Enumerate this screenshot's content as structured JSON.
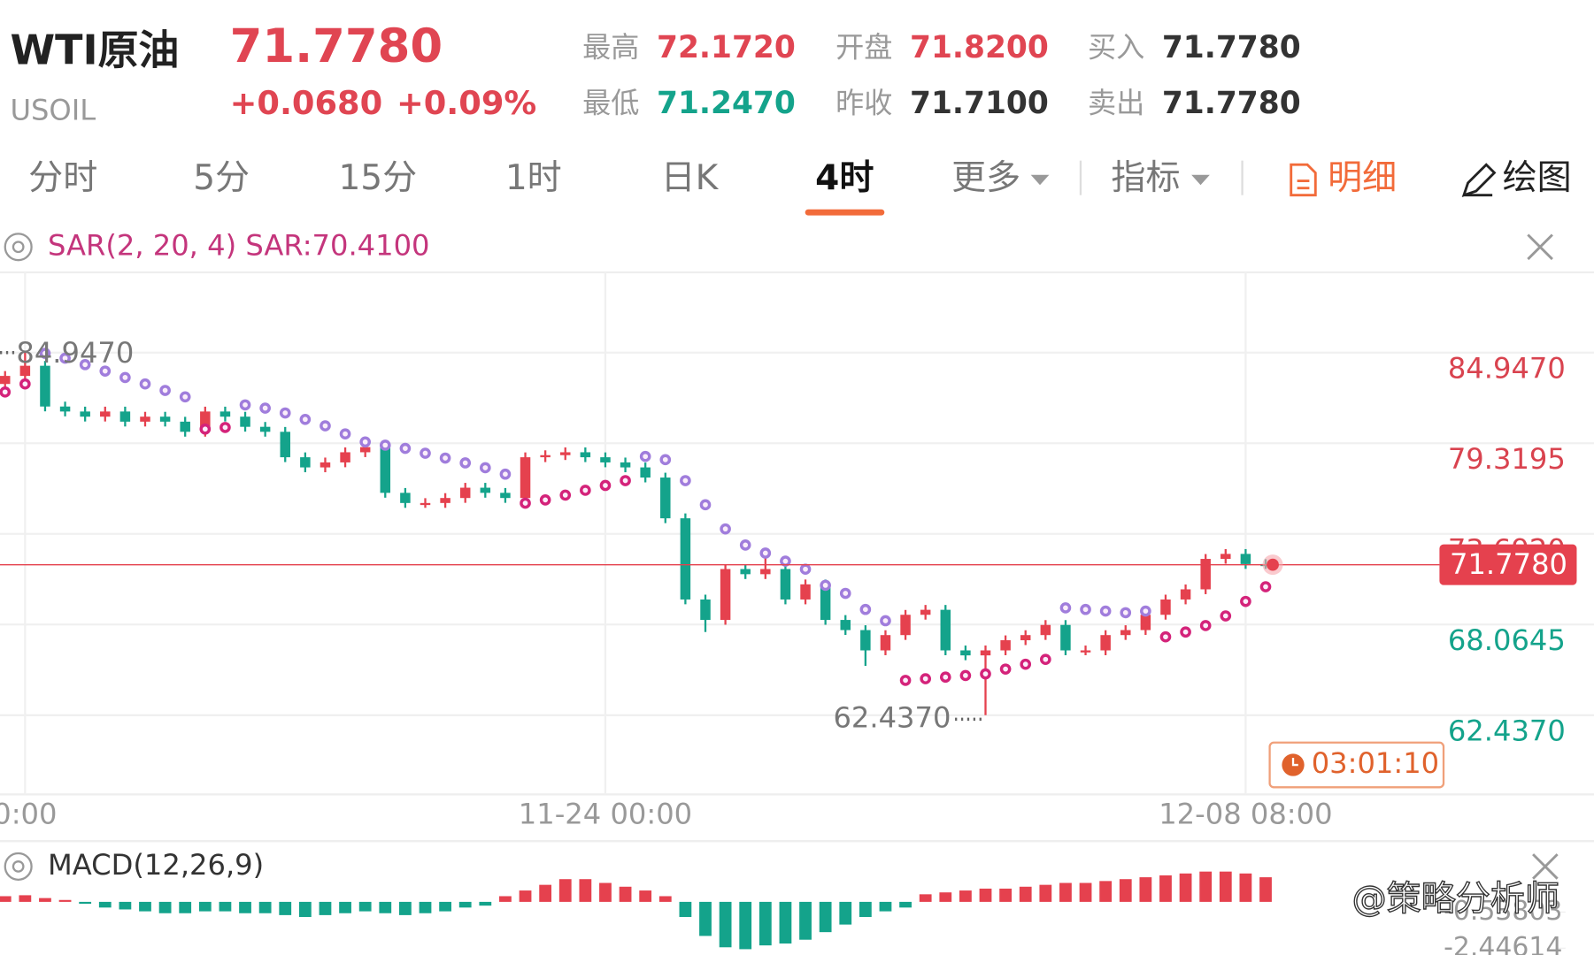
{
  "header": {
    "name": "WTI原油",
    "symbol": "USOIL",
    "price": "71.7780",
    "change": "+0.0680",
    "change_pct": "+0.09%"
  },
  "quotes": [
    {
      "label": "最高",
      "value": "72.1720"
    },
    {
      "label": "最低",
      "value": "71.2470"
    },
    {
      "label": "开盘",
      "value": "71.8200"
    },
    {
      "label": "昨收",
      "value": "71.7100"
    },
    {
      "label": "买入",
      "value": "71.7780"
    },
    {
      "label": "卖出",
      "value": "71.7780"
    }
  ],
  "tabs": [
    "分时",
    "5分",
    "15分",
    "1时",
    "日K",
    "4时",
    "更多",
    "指标",
    "明细",
    "绘图"
  ],
  "indicator": "SAR(2, 20, 4) SAR:70.4100",
  "timer": "03:01:10",
  "watermark": "@策略分析师",
  "chart_data": {
    "type": "candlestick",
    "ylim": [
      57.52,
      89.93
    ],
    "yticks": [
      {
        "value": 84.947,
        "label": "84.9470"
      },
      {
        "value": 79.3195,
        "label": "79.3195"
      },
      {
        "value": 73.692,
        "label": "73.6920"
      },
      {
        "value": 68.0645,
        "label": "68.0645"
      },
      {
        "value": 62.437,
        "label": "62.4370"
      }
    ],
    "grid": true,
    "high_label": "84.9470",
    "low_label": "62.4370",
    "up_color": "#e5414e",
    "down_color": "#14a38b",
    "sar_up_color": "#d4237a",
    "sar_down_color": "#a07ddc",
    "categories": [
      null,
      "0:00",
      null,
      null,
      null,
      null,
      null,
      null,
      null,
      null,
      null,
      null,
      null,
      null,
      null,
      null,
      null,
      null,
      null,
      null,
      null,
      null,
      null,
      null,
      null,
      null,
      null,
      null,
      null,
      null,
      "11-24 00:00",
      null,
      null,
      null,
      null,
      null,
      null,
      null,
      null,
      null,
      null,
      null,
      null,
      null,
      null,
      null,
      null,
      null,
      null,
      null,
      null,
      null,
      null,
      null,
      null,
      null,
      null,
      null,
      null,
      null,
      null,
      null,
      "12-08 08:00",
      null
    ],
    "candles": [
      [
        83.0,
        83.8,
        82.7,
        83.5
      ],
      [
        83.5,
        84.947,
        83.2,
        84.13
      ],
      [
        84.13,
        84.43,
        81.3,
        81.6
      ],
      [
        81.6,
        81.9,
        80.99,
        81.29
      ],
      [
        81.29,
        81.59,
        80.67,
        80.97
      ],
      [
        80.97,
        81.59,
        80.67,
        81.29
      ],
      [
        81.29,
        81.59,
        80.36,
        80.66
      ],
      [
        80.66,
        81.27,
        80.36,
        80.97
      ],
      [
        80.97,
        81.27,
        80.36,
        80.66
      ],
      [
        80.66,
        80.96,
        79.73,
        80.03
      ],
      [
        80.03,
        81.59,
        79.73,
        81.29
      ],
      [
        81.29,
        81.59,
        80.67,
        80.97
      ],
      [
        80.97,
        81.27,
        80.04,
        80.34
      ],
      [
        80.34,
        80.64,
        79.73,
        80.03
      ],
      [
        80.03,
        80.33,
        78.15,
        78.45
      ],
      [
        78.45,
        78.75,
        77.52,
        77.82
      ],
      [
        77.82,
        78.43,
        77.52,
        78.13
      ],
      [
        78.13,
        79.06,
        77.83,
        78.76
      ],
      [
        78.76,
        79.38,
        78.46,
        79.08
      ],
      [
        79.08,
        79.38,
        75.94,
        76.24
      ],
      [
        76.24,
        76.54,
        75.31,
        75.61
      ],
      [
        75.61,
        75.91,
        75.31,
        75.61
      ],
      [
        75.61,
        76.22,
        75.31,
        75.92
      ],
      [
        75.92,
        76.86,
        75.62,
        76.56
      ],
      [
        76.56,
        76.86,
        75.94,
        76.24
      ],
      [
        76.24,
        76.54,
        75.62,
        75.92
      ],
      [
        75.92,
        78.75,
        75.62,
        78.45
      ],
      [
        78.45,
        78.88,
        78.15,
        78.58
      ],
      [
        78.58,
        79.06,
        78.28,
        78.76
      ],
      [
        78.76,
        79.06,
        78.15,
        78.45
      ],
      [
        78.45,
        78.75,
        77.83,
        78.13
      ],
      [
        78.13,
        78.43,
        77.52,
        77.82
      ],
      [
        77.82,
        78.12,
        76.89,
        77.19
      ],
      [
        77.19,
        77.49,
        74.36,
        74.66
      ],
      [
        74.66,
        74.96,
        69.32,
        69.62
      ],
      [
        69.62,
        69.92,
        67.6,
        68.35
      ],
      [
        68.35,
        71.81,
        68.05,
        71.51
      ],
      [
        71.51,
        71.81,
        70.89,
        71.19
      ],
      [
        71.19,
        72.4,
        70.89,
        71.51
      ],
      [
        71.51,
        71.81,
        69.32,
        69.62
      ],
      [
        69.62,
        70.86,
        69.32,
        70.56
      ],
      [
        70.56,
        70.86,
        68.05,
        68.35
      ],
      [
        68.35,
        68.65,
        67.42,
        67.72
      ],
      [
        67.72,
        68.02,
        65.5,
        66.46
      ],
      [
        66.46,
        67.71,
        66.16,
        67.41
      ],
      [
        67.41,
        68.97,
        67.11,
        68.67
      ],
      [
        68.67,
        69.28,
        68.37,
        68.98
      ],
      [
        68.98,
        69.28,
        66.16,
        66.46
      ],
      [
        66.46,
        66.76,
        65.85,
        66.15
      ],
      [
        66.15,
        66.76,
        62.437,
        66.46
      ],
      [
        66.46,
        67.39,
        66.16,
        67.09
      ],
      [
        67.09,
        67.71,
        66.79,
        67.41
      ],
      [
        67.41,
        68.34,
        67.11,
        68.04
      ],
      [
        68.04,
        68.34,
        66.16,
        66.46
      ],
      [
        66.46,
        66.76,
        66.16,
        66.46
      ],
      [
        66.46,
        67.71,
        66.16,
        67.41
      ],
      [
        67.41,
        68.02,
        67.11,
        67.72
      ],
      [
        67.72,
        68.97,
        67.42,
        68.67
      ],
      [
        68.67,
        69.92,
        68.37,
        69.62
      ],
      [
        69.62,
        70.55,
        69.32,
        70.25
      ],
      [
        70.25,
        72.44,
        69.95,
        72.14
      ],
      [
        72.14,
        72.75,
        71.84,
        72.45
      ],
      [
        72.45,
        72.75,
        71.52,
        71.82
      ],
      [
        71.82,
        72.12,
        71.52,
        71.778
      ]
    ],
    "sar": [
      82.5,
      83.0,
      84.9,
      84.6,
      84.2,
      83.8,
      83.4,
      83.0,
      82.6,
      82.2,
      80.2,
      80.3,
      81.7,
      81.5,
      81.2,
      80.8,
      80.4,
      79.9,
      79.4,
      79.2,
      79.0,
      78.7,
      78.4,
      78.1,
      77.8,
      77.4,
      75.6,
      75.8,
      76.1,
      76.4,
      76.7,
      77.0,
      78.5,
      78.3,
      77.0,
      75.5,
      74.0,
      73.0,
      72.5,
      72.0,
      71.5,
      70.5,
      70.0,
      69.0,
      68.3,
      64.6,
      64.7,
      64.8,
      64.9,
      65.0,
      65.3,
      65.6,
      65.9,
      69.1,
      69.0,
      68.9,
      68.8,
      68.9,
      67.3,
      67.6,
      68.0,
      68.6,
      69.5,
      70.41
    ],
    "macd": {
      "title": "MACD(12,26,9)",
      "ylim": [
        -2.8,
        1.6
      ],
      "yticks": [
        {
          "value": -0.53803,
          "label": "-0.53803"
        },
        {
          "value": -2.44614,
          "label": "-2.44614"
        }
      ],
      "hist": [
        0.3,
        0.35,
        0.2,
        0.1,
        -0.1,
        -0.3,
        -0.4,
        -0.5,
        -0.6,
        -0.6,
        -0.5,
        -0.5,
        -0.6,
        -0.6,
        -0.7,
        -0.8,
        -0.7,
        -0.6,
        -0.5,
        -0.6,
        -0.7,
        -0.6,
        -0.5,
        -0.3,
        -0.2,
        0.3,
        0.6,
        0.9,
        1.2,
        1.2,
        1.0,
        0.8,
        0.6,
        0.3,
        -0.8,
        -1.8,
        -2.4,
        -2.5,
        -2.3,
        -2.2,
        -2.0,
        -1.6,
        -1.2,
        -0.8,
        -0.5,
        -0.3,
        0.4,
        0.5,
        0.6,
        0.7,
        0.7,
        0.8,
        0.9,
        1.0,
        1.0,
        1.1,
        1.2,
        1.3,
        1.4,
        1.5,
        1.6,
        1.6,
        1.5,
        1.3
      ]
    }
  }
}
